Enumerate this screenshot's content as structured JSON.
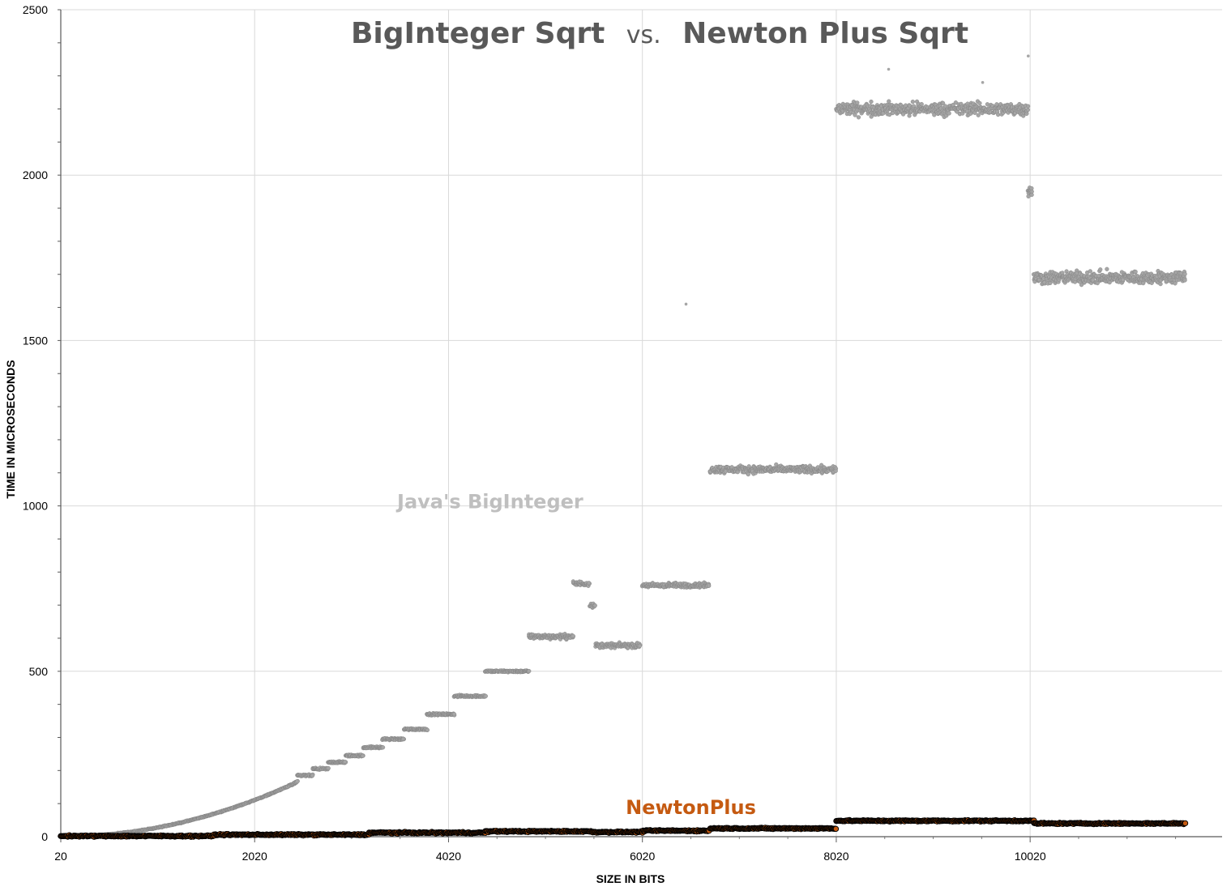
{
  "chart_data": {
    "type": "scatter",
    "title": {
      "part1": "BigInteger Sqrt",
      "part2": "vs.",
      "part3": "Newton Plus Sqrt"
    },
    "xlabel": "SIZE IN BITS",
    "ylabel": "TIME IN MICROSECONDS",
    "xlim": [
      20,
      12000
    ],
    "ylim": [
      0,
      2500
    ],
    "x_ticks": [
      20,
      2020,
      4020,
      6020,
      8020,
      10020
    ],
    "y_ticks": [
      0,
      500,
      1000,
      1500,
      2000,
      2500
    ],
    "grid": true,
    "colors": {
      "biginteger": "#a6a6a6",
      "newtonplus": "#c55a11",
      "newtonplus_label": "#c55a11",
      "biginteger_label": "#bfbfbf"
    },
    "series": [
      {
        "name": "Java's BigInteger",
        "label_at": [
          4450,
          1000
        ],
        "segments": [
          {
            "x0": 20,
            "x1": 2460,
            "y": "quadratic",
            "y_start": 0,
            "y_end": 165
          },
          {
            "x0": 2460,
            "x1": 2620,
            "y": 185
          },
          {
            "x0": 2620,
            "x1": 2780,
            "y": 205
          },
          {
            "x0": 2780,
            "x1": 2960,
            "y": 225
          },
          {
            "x0": 2960,
            "x1": 3140,
            "y": 245
          },
          {
            "x0": 3140,
            "x1": 3340,
            "y": 270
          },
          {
            "x0": 3340,
            "x1": 3560,
            "y": 295
          },
          {
            "x0": 3560,
            "x1": 3800,
            "y": 325
          },
          {
            "x0": 3800,
            "x1": 4080,
            "y": 370
          },
          {
            "x0": 4080,
            "x1": 4400,
            "y": 425
          },
          {
            "x0": 4400,
            "x1": 4850,
            "y": 500
          },
          {
            "x0": 4850,
            "x1": 5310,
            "y": 605
          },
          {
            "x0": 5310,
            "x1": 5470,
            "y": 765
          },
          {
            "x0": 5480,
            "x1": 5530,
            "y": 700
          },
          {
            "x0": 5540,
            "x1": 6000,
            "y": 578
          },
          {
            "x0": 6020,
            "x1": 6710,
            "y": 760
          },
          {
            "x0": 6720,
            "x1": 8020,
            "y": 1110
          },
          {
            "x0": 8020,
            "x1": 10000,
            "y": 2200
          },
          {
            "x0": 10000,
            "x1": 10040,
            "y": 1950
          },
          {
            "x0": 10060,
            "x1": 11620,
            "y": 1690
          }
        ],
        "outliers": [
          [
            6470,
            1610
          ],
          [
            8560,
            2320
          ],
          [
            9530,
            2280
          ],
          [
            10000,
            2360
          ]
        ]
      },
      {
        "name": "NewtonPlus",
        "label_at": [
          6520,
          88
        ],
        "segments": [
          {
            "x0": 20,
            "x1": 1600,
            "y": 2
          },
          {
            "x0": 1600,
            "x1": 3200,
            "y": 6
          },
          {
            "x0": 3200,
            "x1": 4400,
            "y": 12
          },
          {
            "x0": 4400,
            "x1": 5500,
            "y": 16
          },
          {
            "x0": 5500,
            "x1": 6020,
            "y": 14
          },
          {
            "x0": 6020,
            "x1": 6710,
            "y": 18
          },
          {
            "x0": 6720,
            "x1": 8020,
            "y": 25
          },
          {
            "x0": 8020,
            "x1": 10060,
            "y": 48
          },
          {
            "x0": 10060,
            "x1": 11620,
            "y": 40
          }
        ],
        "outliers": []
      }
    ]
  }
}
